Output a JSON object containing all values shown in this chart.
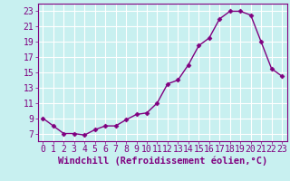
{
  "x": [
    0,
    1,
    2,
    3,
    4,
    5,
    6,
    7,
    8,
    9,
    10,
    11,
    12,
    13,
    14,
    15,
    16,
    17,
    18,
    19,
    20,
    21,
    22,
    23
  ],
  "y": [
    9,
    8,
    7,
    7,
    6.8,
    7.5,
    8,
    8,
    8.8,
    9.5,
    9.7,
    11,
    13.5,
    14,
    16,
    18.5,
    19.5,
    22,
    23,
    23,
    22.5,
    19,
    15.5,
    14.5
  ],
  "line_color": "#800080",
  "marker": "D",
  "marker_size": 2.5,
  "line_width": 1.0,
  "bg_color": "#c8f0f0",
  "grid_color": "#ffffff",
  "xlabel": "Windchill (Refroidissement éolien,°C)",
  "xlabel_color": "#800080",
  "tick_color": "#800080",
  "spine_color": "#800080",
  "ylim": [
    6,
    24
  ],
  "yticks": [
    7,
    9,
    11,
    13,
    15,
    17,
    19,
    21,
    23
  ],
  "xlim": [
    -0.5,
    23.5
  ],
  "xticks": [
    0,
    1,
    2,
    3,
    4,
    5,
    6,
    7,
    8,
    9,
    10,
    11,
    12,
    13,
    14,
    15,
    16,
    17,
    18,
    19,
    20,
    21,
    22,
    23
  ],
  "font_size": 7,
  "xlabel_fontsize": 7.5
}
